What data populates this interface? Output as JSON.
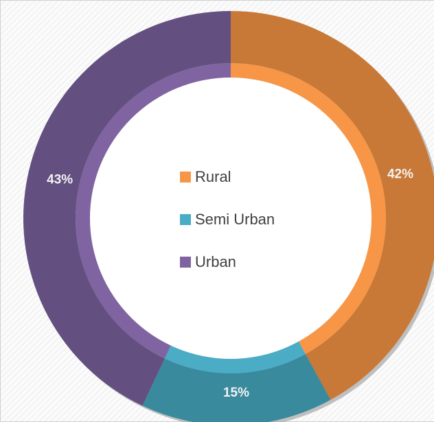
{
  "chart_data": {
    "type": "donut",
    "categories": [
      "Rural",
      "Semi Urban",
      "Urban"
    ],
    "values": [
      42,
      15,
      43
    ],
    "value_labels": [
      "42%",
      "15%",
      "43%"
    ],
    "colors": [
      "#c87937",
      "#3a8a9e",
      "#634f80"
    ],
    "highlight_colors": [
      "#f79646",
      "#4bacc6",
      "#8064a2"
    ],
    "legend": "center"
  }
}
